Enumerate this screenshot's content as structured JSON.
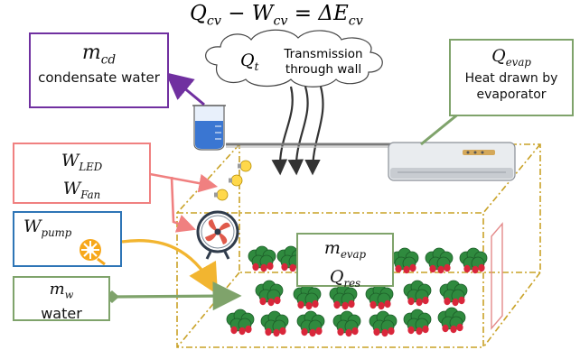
{
  "equation": {
    "q_cv": "Q",
    "q_cv_sub": "cv",
    "minus": " − ",
    "w_cv": "W",
    "w_cv_sub": "cv",
    "equals": " = ",
    "delta_e": "ΔE",
    "delta_e_sub": "cv"
  },
  "condensate": {
    "symbol": "m",
    "sub": "cd",
    "label": "condensate water",
    "color": "#7030a0"
  },
  "transmission": {
    "symbol": "Q",
    "sub": "t",
    "label_line1": "Transmission",
    "label_line2": "through wall"
  },
  "evaporator": {
    "symbol": "Q",
    "sub": "evap",
    "label_line1": "Heat drawn by",
    "label_line2": "evaporator",
    "color": "#7fa36b"
  },
  "led_fan": {
    "w_led": "W",
    "w_led_sub": "LED",
    "w_fan": "W",
    "w_fan_sub": "Fan",
    "color": "#f08080"
  },
  "pump": {
    "symbol": "W",
    "sub": "pump",
    "color": "#2e75b6"
  },
  "water": {
    "symbol": "m",
    "sub": "w",
    "label": "water",
    "color": "#7fa36b"
  },
  "center": {
    "m_symbol": "m",
    "m_sub": "evap",
    "q_symbol": "Q",
    "q_sub": "res",
    "color": "#7fa36b"
  },
  "colors": {
    "control_volume": "#c9a227",
    "pump_arrow": "#f2b530",
    "cloud_arrows": "#333333"
  }
}
